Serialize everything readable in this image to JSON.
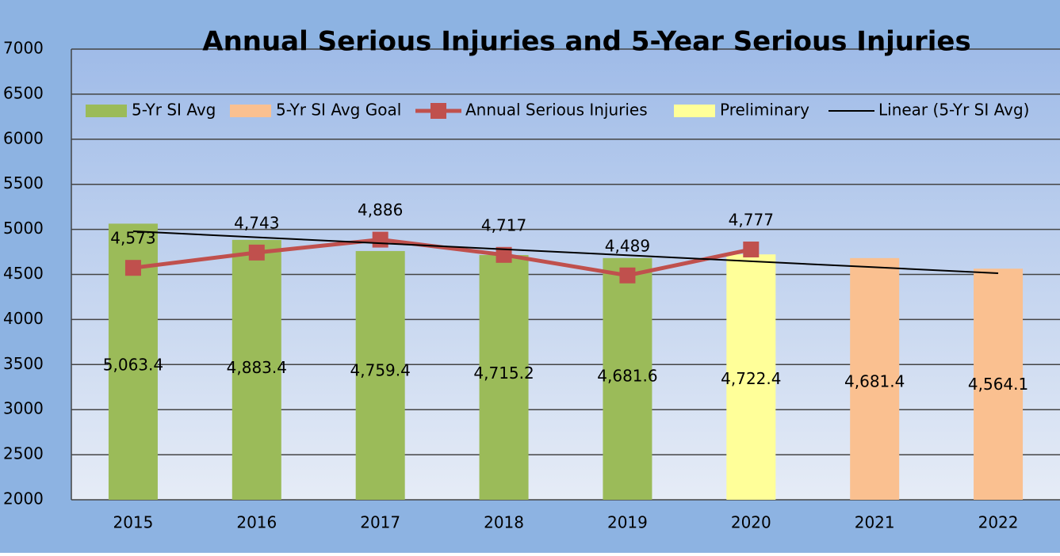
{
  "chart_data": {
    "type": "bar",
    "title": "Annual Serious Injuries and 5-Year Serious Injuries",
    "categories": [
      "2015",
      "2016",
      "2017",
      "2018",
      "2019",
      "2020",
      "2021",
      "2022"
    ],
    "series": [
      {
        "name": "5-Yr SI Avg",
        "type": "bar",
        "color": "#9bbb59",
        "values": [
          5063.4,
          4883.4,
          4759.4,
          4715.2,
          4681.6,
          null,
          null,
          null
        ],
        "value_labels": [
          "5,063.4",
          "4,883.4",
          "4,759.4",
          "4,715.2",
          "4,681.6",
          null,
          null,
          null
        ]
      },
      {
        "name": "5-Yr SI Avg Goal",
        "type": "bar",
        "color": "#fac090",
        "values": [
          null,
          null,
          null,
          null,
          null,
          null,
          4681.4,
          4564.1
        ],
        "value_labels": [
          null,
          null,
          null,
          null,
          null,
          null,
          "4,681.4",
          "4,564.1"
        ]
      },
      {
        "name": "Annual Serious Injuries",
        "type": "line",
        "color": "#c0504d",
        "marker": "square",
        "values": [
          4573,
          4743,
          4886,
          4717,
          4489,
          4777,
          null,
          null
        ],
        "value_labels": [
          "4,573",
          "4,743",
          "4,886",
          "4,717",
          "4,489",
          "4,777",
          null,
          null
        ]
      },
      {
        "name": "Preliminary",
        "type": "bar",
        "color": "#ffff99",
        "values": [
          null,
          null,
          null,
          null,
          null,
          4722.4,
          null,
          null
        ],
        "value_labels": [
          null,
          null,
          null,
          null,
          null,
          "4,722.4",
          null,
          null
        ]
      },
      {
        "name": "Linear (5-Yr SI Avg)",
        "type": "line",
        "color": "#000000",
        "values": [
          4979,
          4912,
          4846,
          4779,
          4713,
          4646,
          4580,
          4513
        ]
      }
    ],
    "ylim": [
      2000,
      7000
    ],
    "yticks": [
      2000,
      2500,
      3000,
      3500,
      4000,
      4500,
      5000,
      5500,
      6000,
      6500,
      7000
    ],
    "grid": true,
    "legend": "top"
  }
}
